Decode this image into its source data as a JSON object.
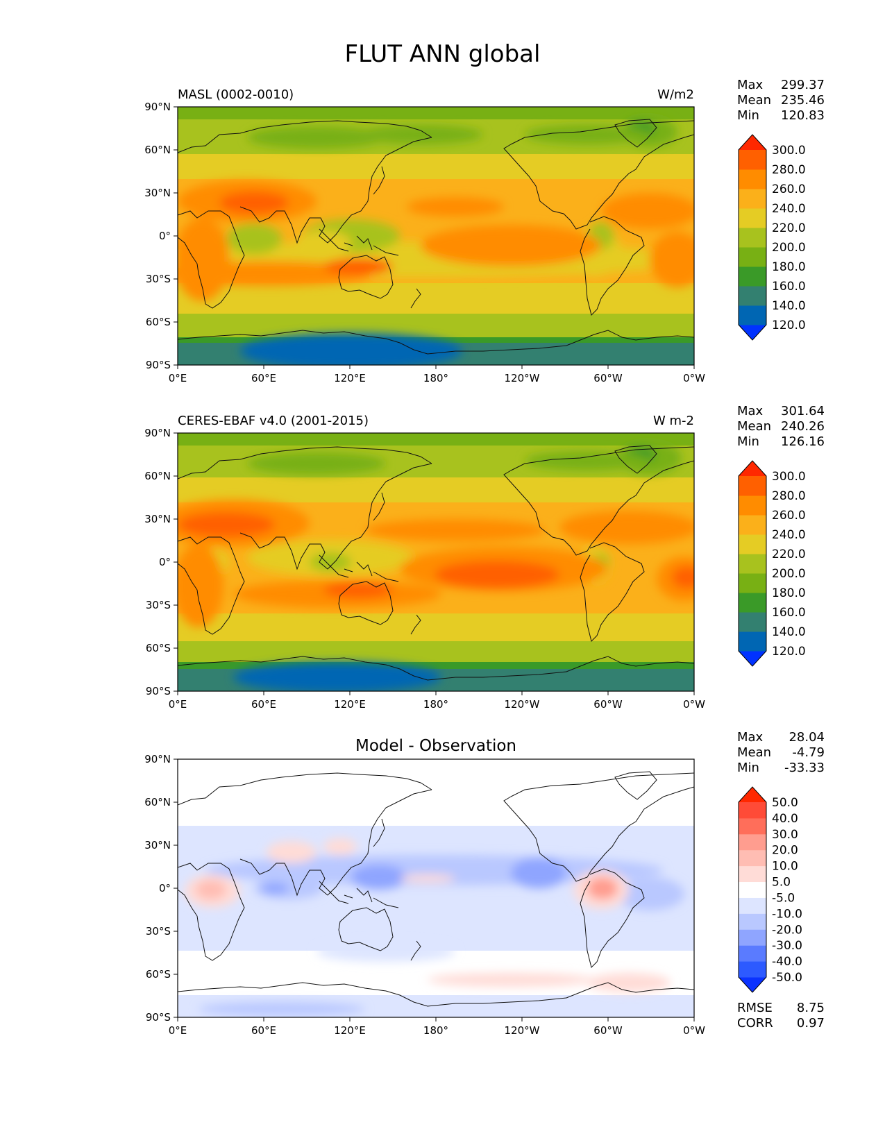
{
  "figure_title": "FLUT ANN global",
  "x_ticks": [
    "0°E",
    "60°E",
    "120°E",
    "180°",
    "120°W",
    "60°W",
    "0°W"
  ],
  "y_ticks": [
    "90°N",
    "60°N",
    "30°N",
    "0°",
    "30°S",
    "60°S",
    "90°S"
  ],
  "panels": [
    {
      "left_title": "MASL (0002-0010)",
      "center_title": "",
      "right_title": "W/m2",
      "stats": [
        {
          "label": "Max",
          "value": "299.37"
        },
        {
          "label": "Mean",
          "value": "235.46"
        },
        {
          "label": "Min",
          "value": "120.83"
        }
      ],
      "colorbar": {
        "colors": [
          "#0032ff",
          "#0066b3",
          "#338070",
          "#3a9a28",
          "#78b014",
          "#a8c21e",
          "#e5cc24",
          "#fbb01a",
          "#ff8c00",
          "#ff6000",
          "#ff2800"
        ],
        "labels": [
          "120.0",
          "140.0",
          "160.0",
          "180.0",
          "200.0",
          "220.0",
          "240.0",
          "260.0",
          "280.0",
          "300.0"
        ]
      },
      "footer": []
    },
    {
      "left_title": "CERES-EBAF v4.0 (2001-2015)",
      "center_title": "",
      "right_title": "W m-2",
      "stats": [
        {
          "label": "Max",
          "value": "301.64"
        },
        {
          "label": "Mean",
          "value": "240.26"
        },
        {
          "label": "Min",
          "value": "126.16"
        }
      ],
      "colorbar": {
        "colors": [
          "#0032ff",
          "#0066b3",
          "#338070",
          "#3a9a28",
          "#78b014",
          "#a8c21e",
          "#e5cc24",
          "#fbb01a",
          "#ff8c00",
          "#ff6000",
          "#ff2800"
        ],
        "labels": [
          "120.0",
          "140.0",
          "160.0",
          "180.0",
          "200.0",
          "220.0",
          "240.0",
          "260.0",
          "280.0",
          "300.0"
        ]
      },
      "footer": []
    },
    {
      "left_title": "",
      "center_title": "Model - Observation",
      "right_title": "",
      "stats": [
        {
          "label": "Max",
          "value": "28.04"
        },
        {
          "label": "Mean",
          "value": "-4.79"
        },
        {
          "label": "Min",
          "value": "-33.33"
        }
      ],
      "colorbar": {
        "colors": [
          "#0a32ff",
          "#2d5aff",
          "#5a7bff",
          "#8fa5ff",
          "#b9c8ff",
          "#dde5ff",
          "#ffffff",
          "#ffdcd7",
          "#ffbdb3",
          "#ff9d8f",
          "#ff6e5a",
          "#ff4b37",
          "#ff2800"
        ],
        "labels": [
          "-50.0",
          "-40.0",
          "-30.0",
          "-20.0",
          "-10.0",
          "-5.0",
          "5.0",
          "10.0",
          "20.0",
          "30.0",
          "40.0",
          "50.0"
        ]
      },
      "footer": [
        {
          "label": "RMSE",
          "value": "8.75"
        },
        {
          "label": "CORR",
          "value": "0.97"
        }
      ]
    }
  ]
}
